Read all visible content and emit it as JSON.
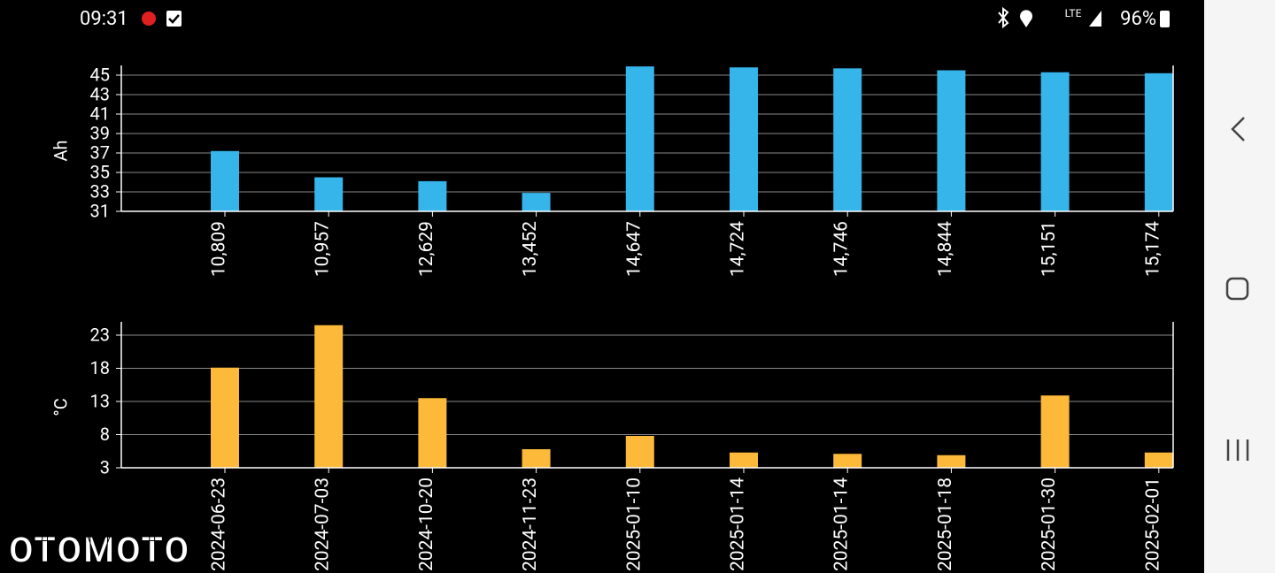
{
  "status_bar": {
    "time": "09:31",
    "network": "LTE",
    "battery": "96%"
  },
  "chart_data": [
    {
      "type": "bar",
      "y_label": "Ah",
      "categories": [
        "10,809",
        "10,957",
        "12,629",
        "13,452",
        "14,647",
        "14,724",
        "14,746",
        "14,844",
        "15,151",
        "15,174"
      ],
      "values": [
        37.2,
        34.5,
        34.1,
        32.9,
        45.9,
        45.8,
        45.7,
        45.5,
        45.3,
        45.2
      ],
      "color": "#35b5e9",
      "ylim": [
        31,
        46
      ],
      "yticks": [
        31,
        33,
        35,
        37,
        39,
        41,
        43,
        45
      ],
      "grid": true
    },
    {
      "type": "bar",
      "y_label": "°C",
      "categories": [
        "2024-06-23",
        "2024-07-03",
        "2024-10-20",
        "2024-11-23",
        "2025-01-10",
        "2025-01-14",
        "2025-01-14",
        "2025-01-18",
        "2025-01-30",
        "2025-02-01"
      ],
      "values": [
        18.1,
        24.5,
        13.5,
        5.8,
        7.8,
        5.3,
        5.1,
        4.9,
        13.9,
        5.3
      ],
      "color": "#fdb93a",
      "ylim": [
        3,
        25
      ],
      "yticks": [
        3,
        8,
        13,
        18,
        23
      ],
      "grid": true
    }
  ],
  "watermark": "OTOMOTO"
}
